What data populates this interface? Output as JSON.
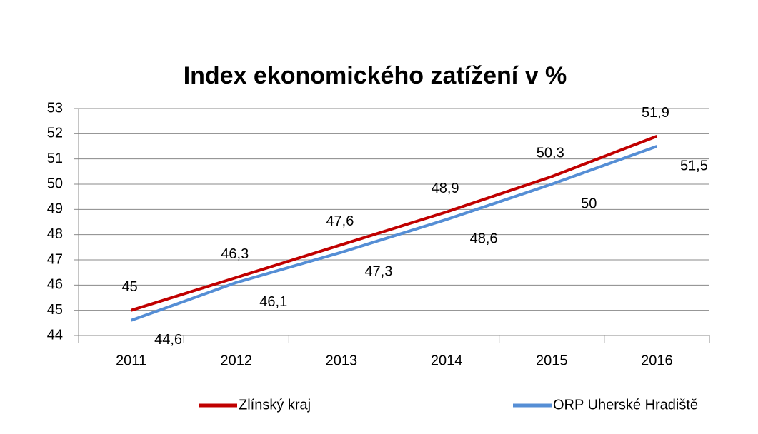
{
  "chart_data": {
    "type": "line",
    "title": "Index ekonomického zatížení v %",
    "categories": [
      "2011",
      "2012",
      "2013",
      "2014",
      "2015",
      "2016"
    ],
    "series": [
      {
        "name": "Zlínský kraj",
        "color": "#c00000",
        "values": [
          45,
          46.3,
          47.6,
          48.9,
          50.3,
          51.9
        ],
        "value_labels": [
          "45",
          "46,3",
          "47,6",
          "48,9",
          "50,3",
          "51,9"
        ]
      },
      {
        "name": "ORP Uherské Hradiště",
        "color": "#558ed5",
        "values": [
          44.6,
          46.1,
          47.3,
          48.6,
          50,
          51.5
        ],
        "value_labels": [
          "44,6",
          "46,1",
          "47,3",
          "48,6",
          "50",
          "51,5"
        ]
      }
    ],
    "ylim": [
      44,
      53
    ],
    "yticks": [
      44,
      45,
      46,
      47,
      48,
      49,
      50,
      51,
      52,
      53
    ],
    "grid": true,
    "legend": "bottom"
  }
}
